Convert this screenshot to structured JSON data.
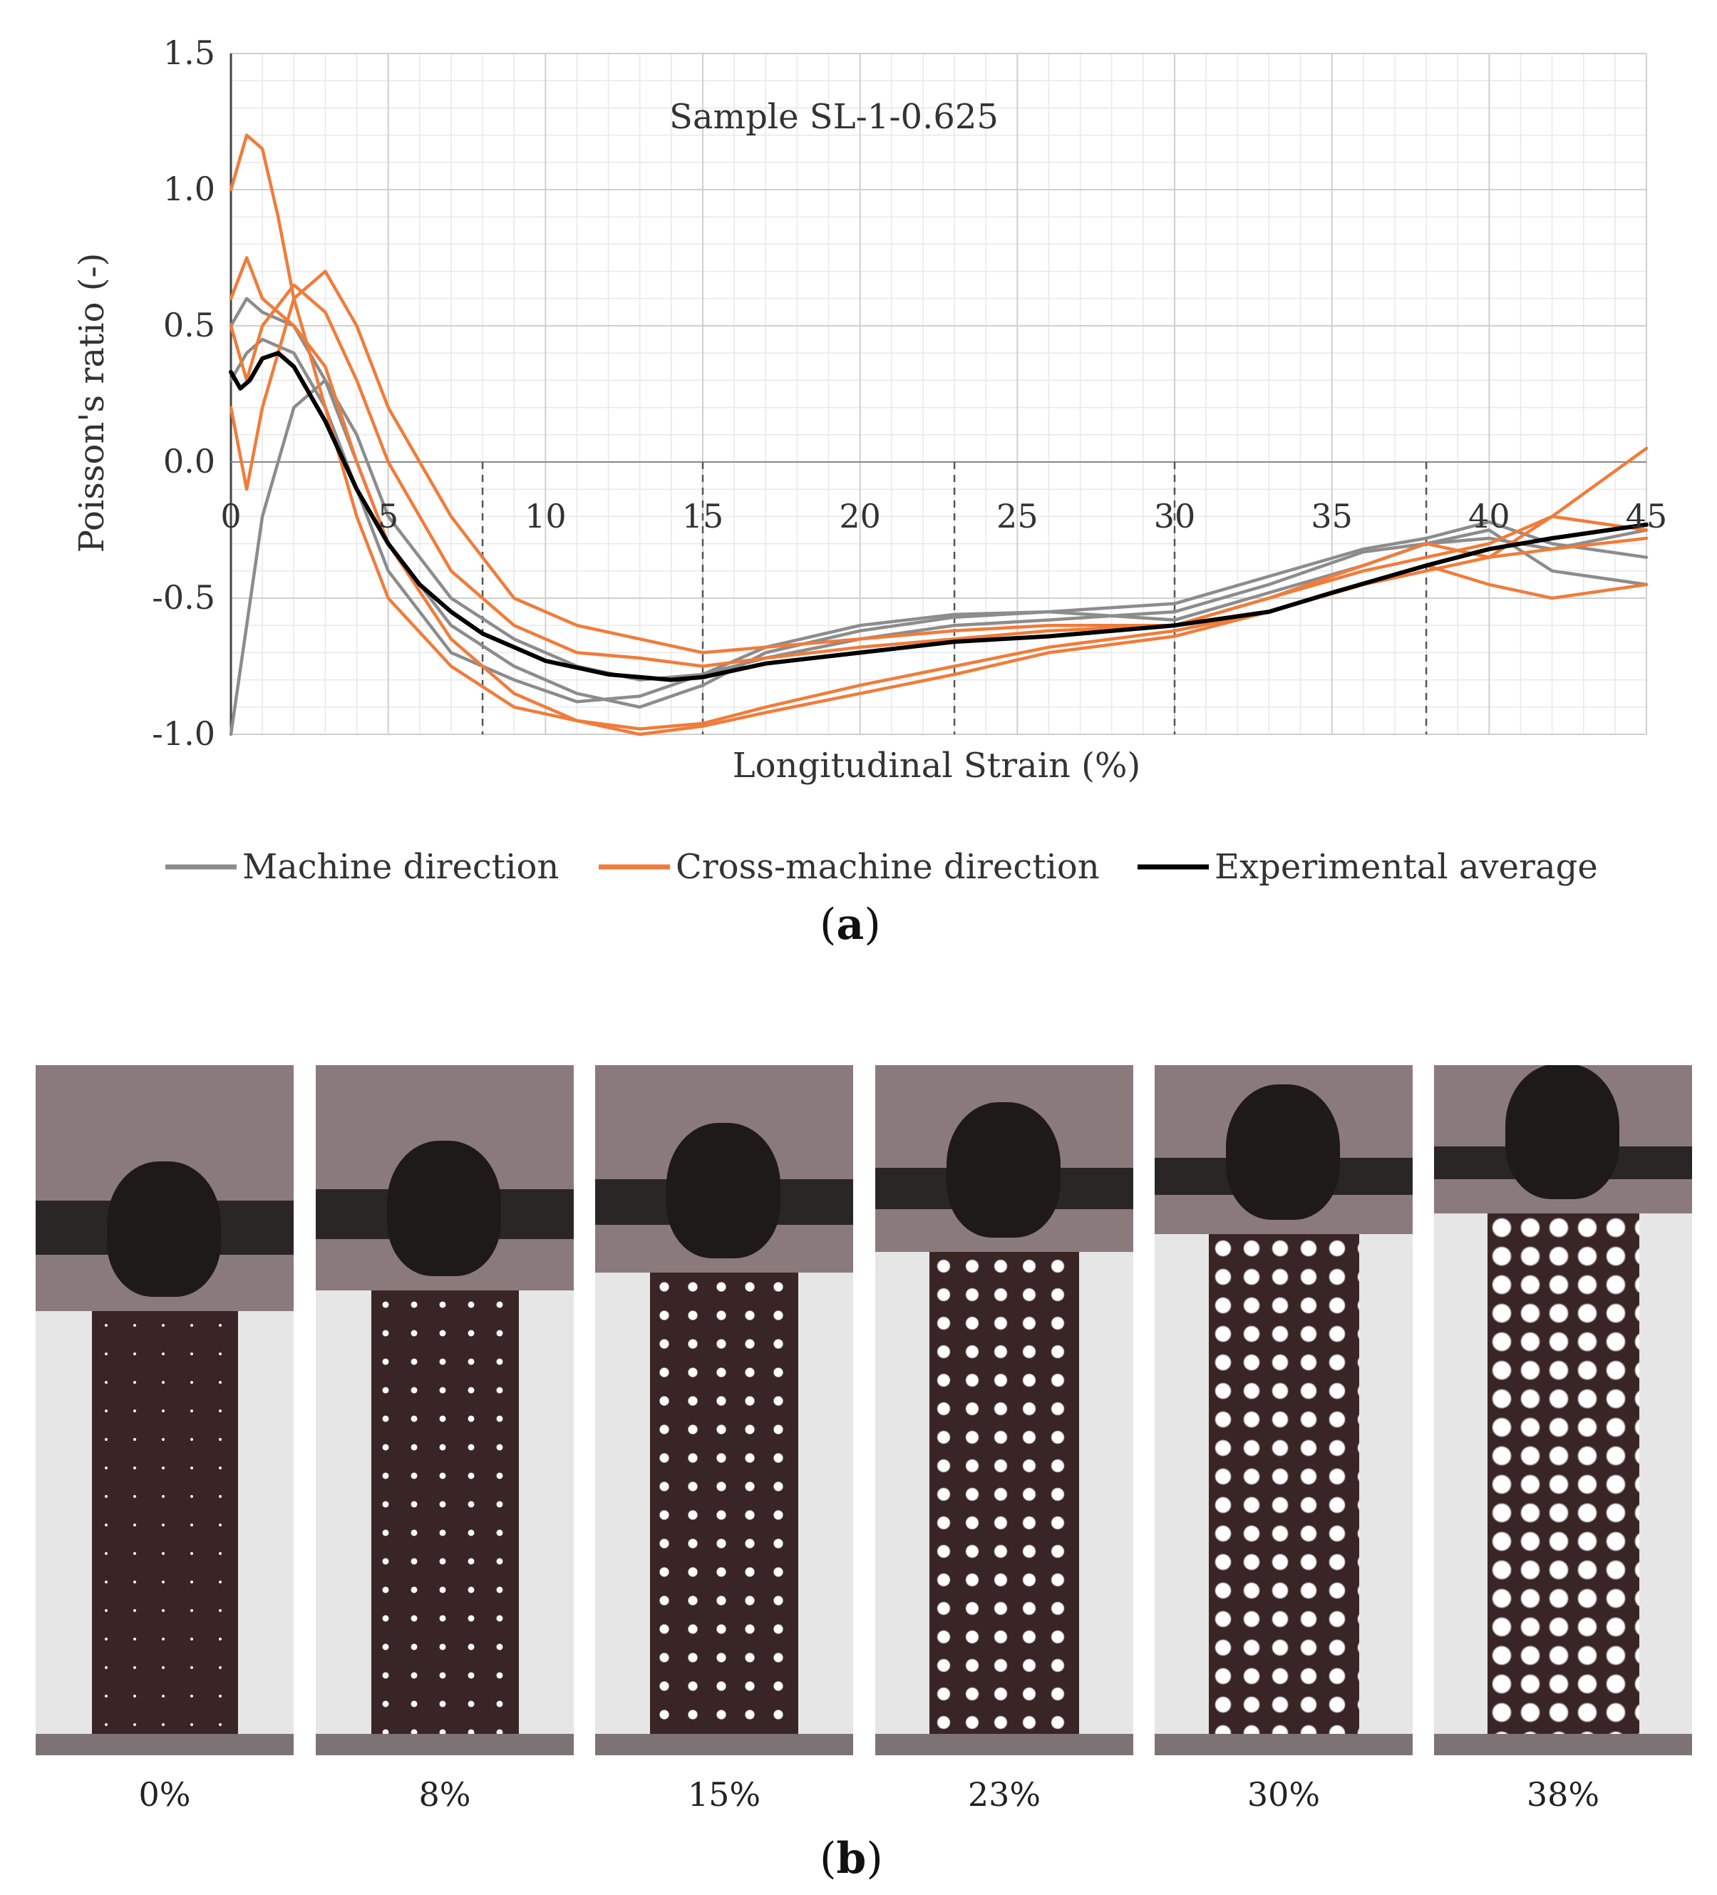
{
  "chart_data": {
    "type": "line",
    "title": "Sample SL-1-0.625",
    "xlabel": "Longitudinal Strain (%)",
    "ylabel": "Poisson's ratio (-)",
    "xlim": [
      0,
      45
    ],
    "ylim": [
      -1.0,
      1.5
    ],
    "x_ticks": [
      "0",
      "5",
      "10",
      "15",
      "20",
      "25",
      "30",
      "35",
      "40",
      "45"
    ],
    "y_ticks": [
      "1.5",
      "1.0",
      "0.5",
      "0.0",
      "-0.5",
      "-1.0"
    ],
    "grid": true,
    "legend": "bottom",
    "reference_lines_x": [
      8,
      15,
      23,
      30,
      38
    ],
    "colors": {
      "machine": "#8c8c8c",
      "cross": "#f07c3a",
      "average": "#000000"
    },
    "series": [
      {
        "name": "Machine direction",
        "group": "machine",
        "x": [
          0,
          0.5,
          1,
          2,
          3,
          4,
          5,
          7,
          9,
          11,
          13,
          15,
          17,
          20,
          23,
          26,
          30,
          33,
          36,
          38,
          40,
          42,
          45
        ],
        "y": [
          -1.0,
          -0.6,
          -0.2,
          0.2,
          0.3,
          0.1,
          -0.2,
          -0.5,
          -0.65,
          -0.75,
          -0.8,
          -0.78,
          -0.72,
          -0.65,
          -0.6,
          -0.58,
          -0.55,
          -0.45,
          -0.33,
          -0.3,
          -0.28,
          -0.32,
          -0.25
        ]
      },
      {
        "name": "Machine direction",
        "group": "machine",
        "x": [
          0,
          0.5,
          1,
          2,
          3,
          4,
          5,
          7,
          9,
          11,
          13,
          15,
          17,
          20,
          23,
          26,
          30,
          33,
          36,
          38,
          40,
          42,
          45
        ],
        "y": [
          0.5,
          0.6,
          0.55,
          0.5,
          0.3,
          0.0,
          -0.3,
          -0.6,
          -0.75,
          -0.85,
          -0.9,
          -0.82,
          -0.7,
          -0.62,
          -0.57,
          -0.55,
          -0.58,
          -0.48,
          -0.38,
          -0.3,
          -0.25,
          -0.4,
          -0.45
        ]
      },
      {
        "name": "Machine direction",
        "group": "machine",
        "x": [
          0,
          0.5,
          1,
          2,
          3,
          4,
          5,
          7,
          9,
          11,
          13,
          15,
          17,
          20,
          23,
          26,
          30,
          33,
          36,
          38,
          40,
          42,
          45
        ],
        "y": [
          0.3,
          0.4,
          0.45,
          0.4,
          0.2,
          -0.1,
          -0.4,
          -0.7,
          -0.8,
          -0.88,
          -0.86,
          -0.78,
          -0.68,
          -0.6,
          -0.56,
          -0.55,
          -0.52,
          -0.42,
          -0.32,
          -0.28,
          -0.22,
          -0.3,
          -0.35
        ]
      },
      {
        "name": "Cross-machine direction",
        "group": "cross",
        "x": [
          0,
          0.5,
          1,
          1.5,
          2,
          3,
          4,
          5,
          7,
          9,
          11,
          13,
          15,
          17,
          20,
          23,
          26,
          30,
          33,
          36,
          38,
          40,
          42,
          45
        ],
        "y": [
          1.0,
          1.2,
          1.15,
          0.9,
          0.6,
          0.2,
          -0.2,
          -0.5,
          -0.75,
          -0.9,
          -0.95,
          -0.98,
          -0.96,
          -0.9,
          -0.82,
          -0.75,
          -0.68,
          -0.62,
          -0.55,
          -0.45,
          -0.4,
          -0.35,
          -0.2,
          0.05
        ]
      },
      {
        "name": "Cross-machine direction",
        "group": "cross",
        "x": [
          0,
          0.5,
          1,
          2,
          3,
          4,
          5,
          7,
          9,
          11,
          13,
          15,
          17,
          20,
          23,
          26,
          30,
          33,
          36,
          38,
          40,
          42,
          45
        ],
        "y": [
          0.6,
          0.75,
          0.6,
          0.5,
          0.35,
          0.0,
          -0.3,
          -0.65,
          -0.85,
          -0.95,
          -1.0,
          -0.97,
          -0.92,
          -0.85,
          -0.78,
          -0.7,
          -0.64,
          -0.55,
          -0.45,
          -0.38,
          -0.45,
          -0.5,
          -0.45
        ]
      },
      {
        "name": "Cross-machine direction",
        "group": "cross",
        "x": [
          0,
          0.5,
          1,
          2,
          3,
          4,
          5,
          7,
          9,
          11,
          13,
          15,
          17,
          20,
          23,
          26,
          30,
          33,
          36,
          38,
          40,
          42,
          45
        ],
        "y": [
          0.2,
          -0.1,
          0.2,
          0.6,
          0.7,
          0.5,
          0.2,
          -0.2,
          -0.5,
          -0.6,
          -0.65,
          -0.7,
          -0.68,
          -0.65,
          -0.62,
          -0.6,
          -0.6,
          -0.5,
          -0.4,
          -0.35,
          -0.3,
          -0.2,
          -0.25
        ]
      },
      {
        "name": "Cross-machine direction",
        "group": "cross",
        "x": [
          0,
          0.5,
          1,
          2,
          3,
          4,
          5,
          7,
          9,
          11,
          13,
          15,
          17,
          20,
          23,
          26,
          30,
          33,
          36,
          38,
          40,
          42,
          45
        ],
        "y": [
          0.5,
          0.3,
          0.5,
          0.65,
          0.55,
          0.3,
          0.0,
          -0.4,
          -0.6,
          -0.7,
          -0.72,
          -0.75,
          -0.72,
          -0.68,
          -0.65,
          -0.62,
          -0.6,
          -0.5,
          -0.38,
          -0.3,
          -0.35,
          -0.32,
          -0.28
        ]
      },
      {
        "name": "Experimental average",
        "group": "average",
        "x": [
          0,
          0.3,
          0.6,
          1,
          1.5,
          2,
          3,
          4,
          5,
          6,
          7,
          8,
          9,
          10,
          12,
          14,
          15,
          17,
          20,
          23,
          26,
          30,
          33,
          35,
          38,
          40,
          42,
          45
        ],
        "y": [
          0.33,
          0.27,
          0.3,
          0.38,
          0.4,
          0.35,
          0.15,
          -0.1,
          -0.3,
          -0.45,
          -0.55,
          -0.63,
          -0.68,
          -0.73,
          -0.78,
          -0.8,
          -0.79,
          -0.74,
          -0.7,
          -0.66,
          -0.64,
          -0.6,
          -0.55,
          -0.48,
          -0.38,
          -0.32,
          -0.28,
          -0.23
        ]
      }
    ]
  },
  "panels": {
    "a_label": "a",
    "b_label": "b"
  },
  "photos": [
    {
      "caption": "0%",
      "strain": 0
    },
    {
      "caption": "8%",
      "strain": 8
    },
    {
      "caption": "15%",
      "strain": 15
    },
    {
      "caption": "23%",
      "strain": 23
    },
    {
      "caption": "30%",
      "strain": 30
    },
    {
      "caption": "38%",
      "strain": 38
    }
  ]
}
